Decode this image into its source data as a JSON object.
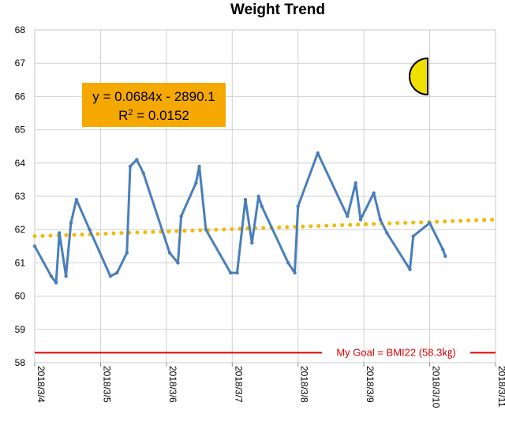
{
  "chart_data": {
    "type": "line",
    "title": "Weight Trend",
    "xlabel": "",
    "ylabel": "",
    "ylim": [
      58,
      68
    ],
    "yticks": [
      "58",
      "59",
      "60",
      "61",
      "62",
      "63",
      "64",
      "65",
      "66",
      "67",
      "68"
    ],
    "xlim": [
      "2018/3/4",
      "2018/3/11"
    ],
    "xticks": [
      "2018/3/4",
      "2018/3/5",
      "2018/3/6",
      "2018/3/7",
      "2018/3/8",
      "2018/3/9",
      "2018/3/10",
      "2018/3/11"
    ],
    "grid": true,
    "colors": {
      "series": "#4a7ebb",
      "trend": "#f5b800",
      "goal": "#e00000",
      "grid": "#d0d0d0",
      "badge": "#f5a800"
    },
    "series": [
      {
        "points": [
          [
            "2018/3/4 00:00",
            61.5
          ],
          [
            "2018/3/4 06:00",
            60.6
          ],
          [
            "2018/3/4 07:48",
            60.4
          ],
          [
            "2018/3/4 09:00",
            61.9
          ],
          [
            "2018/3/4 11:24",
            60.6
          ],
          [
            "2018/3/4 13:12",
            62.2
          ],
          [
            "2018/3/4 15:12",
            62.9
          ],
          [
            "2018/3/4 20:00",
            62.0
          ],
          [
            "2018/3/5 03:36",
            60.6
          ],
          [
            "2018/3/5 06:00",
            60.7
          ],
          [
            "2018/3/5 09:36",
            61.3
          ],
          [
            "2018/3/5 10:48",
            63.9
          ],
          [
            "2018/3/5 13:12",
            64.1
          ],
          [
            "2018/3/5 15:36",
            63.7
          ],
          [
            "2018/3/6 01:12",
            61.3
          ],
          [
            "2018/3/6 04:12",
            61.0
          ],
          [
            "2018/3/6 05:24",
            62.4
          ],
          [
            "2018/3/6 10:48",
            63.4
          ],
          [
            "2018/3/6 12:00",
            63.9
          ],
          [
            "2018/3/6 14:24",
            62.0
          ],
          [
            "2018/3/6 23:24",
            60.7
          ],
          [
            "2018/3/7 01:48",
            60.7
          ],
          [
            "2018/3/7 04:48",
            62.9
          ],
          [
            "2018/3/7 07:12",
            61.6
          ],
          [
            "2018/3/7 09:36",
            63.0
          ],
          [
            "2018/3/7 10:48",
            62.7
          ],
          [
            "2018/3/7 20:24",
            61.0
          ],
          [
            "2018/3/7 22:48",
            60.7
          ],
          [
            "2018/3/8 00:00",
            62.7
          ],
          [
            "2018/3/8 07:12",
            64.3
          ],
          [
            "2018/3/8 18:00",
            62.4
          ],
          [
            "2018/3/8 21:00",
            63.4
          ],
          [
            "2018/3/8 22:48",
            62.3
          ],
          [
            "2018/3/9 03:36",
            63.1
          ],
          [
            "2018/3/9 06:00",
            62.3
          ],
          [
            "2018/3/9 08:24",
            61.9
          ],
          [
            "2018/3/9 16:48",
            60.8
          ],
          [
            "2018/3/9 18:00",
            61.8
          ],
          [
            "2018/3/10 00:00",
            62.2
          ],
          [
            "2018/3/10 04:48",
            61.4
          ],
          [
            "2018/3/10 05:42",
            61.2
          ]
        ]
      }
    ],
    "trendline": {
      "style": "dotted",
      "equation_line1": "y = 0.0684x - 2890.1",
      "r2_label": "R",
      "r2_sup": "2",
      "r2_value": " = 0.0152",
      "start": [
        "2018/3/4",
        61.8
      ],
      "end": [
        "2018/3/11",
        62.3
      ]
    },
    "goal_line": {
      "value": 58.3,
      "label": "My Goal = BMI22 (58.3㎏)"
    }
  }
}
